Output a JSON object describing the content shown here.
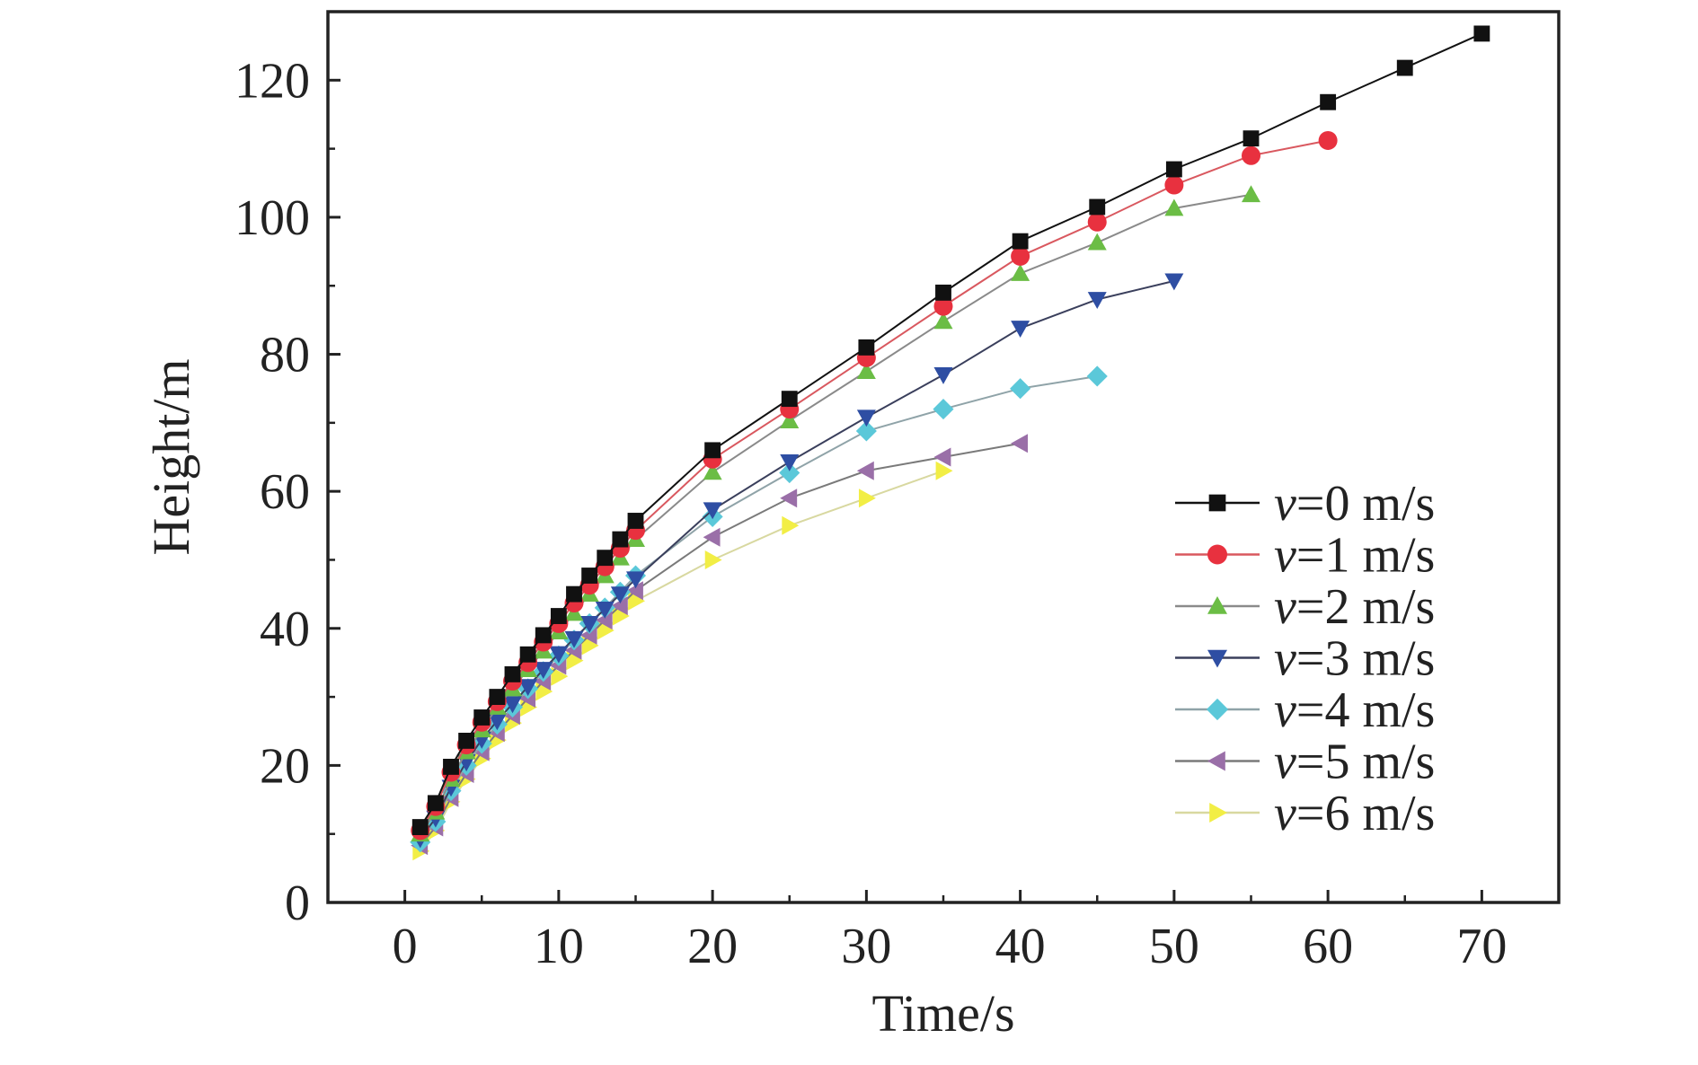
{
  "chart_data": {
    "type": "line",
    "title": "",
    "xlabel": "Time/s",
    "ylabel": "Height/m",
    "xlim": [
      -5,
      75
    ],
    "ylim": [
      0,
      130
    ],
    "xticks": [
      0,
      10,
      20,
      30,
      40,
      50,
      60,
      70
    ],
    "xtick_labels": [
      "0",
      "10",
      "20",
      "30",
      "40",
      "50",
      "60",
      "70"
    ],
    "yticks": [
      0,
      20,
      40,
      60,
      80,
      100,
      120
    ],
    "ytick_labels": [
      "0",
      "20",
      "40",
      "60",
      "80",
      "100",
      "120"
    ],
    "grid": false,
    "legend_position": "right",
    "series": [
      {
        "name": "v=0 m/s",
        "var": "v",
        "rest": "=0 m/s",
        "marker": "square",
        "color": "#111111",
        "line": "#111111",
        "x": [
          1,
          2,
          3,
          4,
          5,
          6,
          7,
          8,
          9,
          10,
          11,
          12,
          13,
          14,
          15,
          20,
          25,
          30,
          35,
          40,
          45,
          50,
          55,
          60,
          65,
          70
        ],
        "y": [
          11,
          14.5,
          19.8,
          23.6,
          27,
          30,
          33.3,
          36.2,
          39,
          41.8,
          45,
          47.7,
          50.3,
          53,
          55.7,
          66,
          73.5,
          81,
          89,
          96.5,
          101.5,
          107,
          111.5,
          116.8,
          121.8,
          126.8
        ]
      },
      {
        "name": "v=1 m/s",
        "var": "v",
        "rest": "=1 m/s",
        "marker": "circle",
        "color": "#e8313f",
        "line": "#d9585f",
        "x": [
          1,
          2,
          3,
          4,
          5,
          6,
          7,
          8,
          9,
          10,
          11,
          12,
          13,
          14,
          15,
          20,
          25,
          30,
          35,
          40,
          45,
          50,
          55,
          60
        ],
        "y": [
          10.5,
          14,
          19,
          23,
          26.3,
          29.3,
          32.3,
          35,
          38,
          40.7,
          43.7,
          46.3,
          49,
          51.7,
          54.3,
          64.7,
          72,
          79.5,
          87,
          94.3,
          99.3,
          104.7,
          109,
          111.2
        ]
      },
      {
        "name": "v=2 m/s",
        "var": "v",
        "rest": "=2 m/s",
        "marker": "triangle-up",
        "color": "#6bbd45",
        "line": "#8a8a8a",
        "x": [
          1,
          2,
          3,
          4,
          5,
          6,
          7,
          8,
          9,
          10,
          11,
          12,
          13,
          14,
          15,
          20,
          25,
          30,
          35,
          40,
          45,
          50,
          55
        ],
        "y": [
          10,
          13.2,
          18,
          22,
          25.2,
          28.5,
          31.2,
          34,
          36.7,
          39.5,
          42.2,
          45,
          47.7,
          50.3,
          53,
          62.8,
          70.3,
          77.5,
          84.8,
          91.8,
          96.3,
          101.3,
          103.3
        ]
      },
      {
        "name": "v=3 m/s",
        "var": "v",
        "rest": "=3 m/s",
        "marker": "triangle-down",
        "color": "#2e4ea3",
        "line": "#3a3f5c",
        "x": [
          1,
          2,
          3,
          4,
          5,
          6,
          7,
          8,
          9,
          10,
          11,
          12,
          13,
          14,
          15,
          20,
          25,
          30,
          35,
          40,
          45,
          50
        ],
        "y": [
          9.3,
          12.3,
          16.8,
          20.5,
          23.8,
          26.5,
          29,
          31.5,
          34,
          36.3,
          38.5,
          40.7,
          42.8,
          45,
          47.2,
          57.3,
          64.3,
          70.8,
          77,
          83.8,
          88,
          90.7
        ]
      },
      {
        "name": "v=4 m/s",
        "var": "v",
        "rest": "=4 m/s",
        "marker": "diamond",
        "color": "#5bc8d9",
        "line": "#8fa3a8",
        "x": [
          1,
          2,
          3,
          4,
          5,
          6,
          7,
          8,
          9,
          10,
          11,
          12,
          13,
          14,
          15,
          20,
          25,
          30,
          35,
          40,
          45
        ],
        "y": [
          8.8,
          11.8,
          16.3,
          20,
          23.2,
          26,
          28.5,
          31.2,
          33.7,
          36,
          38.3,
          40.7,
          43,
          45.3,
          47.7,
          56.3,
          62.7,
          68.8,
          72,
          75,
          76.8
        ]
      },
      {
        "name": "v=5 m/s",
        "var": "v",
        "rest": "=5 m/s",
        "marker": "triangle-left",
        "color": "#9a6fa8",
        "line": "#7a7a7a",
        "x": [
          1,
          2,
          3,
          4,
          5,
          6,
          7,
          8,
          9,
          10,
          11,
          12,
          13,
          14,
          15,
          20,
          25,
          30,
          35,
          40
        ],
        "y": [
          8.3,
          11,
          15.3,
          18.8,
          22,
          24.8,
          27.3,
          29.8,
          32.3,
          34.6,
          36.8,
          39,
          41.2,
          43.3,
          45.5,
          53.3,
          59,
          63,
          65,
          67
        ]
      },
      {
        "name": "v=6 m/s",
        "var": "v",
        "rest": "=6 m/s",
        "marker": "triangle-right",
        "color": "#f2ee45",
        "line": "#d8d8a0",
        "x": [
          1,
          2,
          3,
          4,
          5,
          6,
          7,
          8,
          9,
          10,
          11,
          12,
          13,
          14,
          15,
          20,
          25,
          30,
          35
        ],
        "y": [
          7.5,
          10.5,
          14.7,
          18,
          21,
          23.7,
          26.2,
          28.5,
          30.8,
          33,
          35.3,
          37.5,
          39.7,
          41.8,
          44,
          50,
          55,
          59,
          63
        ]
      }
    ]
  }
}
